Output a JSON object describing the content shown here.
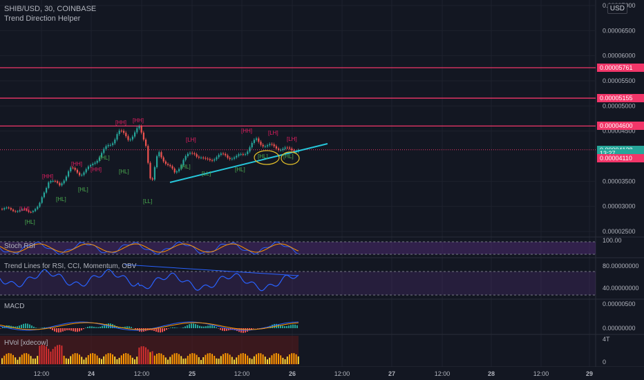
{
  "header": {
    "symbol_line": "SHIB/USD, 30, COINBASE",
    "indicator_line": "Trend Direction Helper",
    "currency_badge": "USD"
  },
  "colors": {
    "background": "#131722",
    "grid": "#1e222d",
    "level_line": "#f23669",
    "current_price_line": "#f23669",
    "trendline": "#26c6da",
    "bull_candle": "#26a69a",
    "bear_candle": "#ef5350",
    "rsi_band": "#4a2a6e",
    "rsi_line": "#2962ff",
    "stoch_k": "#2962ff",
    "stoch_d": "#ff9800",
    "hl_label": "#4caf50",
    "hh_label": "#e91e63"
  },
  "price_axis": {
    "ticks": [
      "0.00007000",
      "0.00006500",
      "0.00006000",
      "0.00005500",
      "0.00005000",
      "0.00004500",
      "0.00003500",
      "0.00003000",
      "0.00002500"
    ],
    "tags": [
      {
        "label": "0.00005761",
        "value": 5.761e-05,
        "color": "#f23669"
      },
      {
        "label": "0.00005155",
        "value": 5.155e-05,
        "color": "#f23669"
      },
      {
        "label": "0.00004600",
        "value": 4.6e-05,
        "color": "#f23669"
      },
      {
        "label": "0.00004128",
        "value": 4.128e-05,
        "color": "#26a69a"
      },
      {
        "label": "13:27",
        "value": 4.06e-05,
        "color": "#26a69a"
      },
      {
        "label": "0.00004110",
        "value": 3.96e-05,
        "color": "#f23669"
      }
    ]
  },
  "time_axis": {
    "labels": [
      "12:00",
      "24",
      "12:00",
      "25",
      "12:00",
      "26",
      "12:00",
      "27",
      "12:00",
      "28",
      "12:00",
      "29"
    ]
  },
  "levels": [
    5.761e-05,
    5.155e-05,
    4.6e-05
  ],
  "current_price": 4.128e-05,
  "panes": {
    "stoch_rsi": {
      "label": "Stoch RSI",
      "tick": "100.00"
    },
    "trend_lines": {
      "label": "Trend Lines for RSI, CCI, Momentum, OBV",
      "ticks": [
        "80.00000000",
        "40.00000000"
      ]
    },
    "macd": {
      "label": "MACD",
      "ticks": [
        "0.00000500",
        "0.00000000"
      ]
    },
    "hvol": {
      "label": "HVol [xdecow]",
      "ticks": [
        "4T",
        "0"
      ]
    }
  },
  "swing_labels": [
    {
      "text": "[LH]",
      "type": "hh"
    },
    {
      "text": "[HL]",
      "type": "hl"
    },
    {
      "text": "[HH]",
      "type": "hh"
    },
    {
      "text": "[HL]",
      "type": "hl"
    },
    {
      "text": "[HH]",
      "type": "hh"
    },
    {
      "text": "[HL]",
      "type": "hl"
    },
    {
      "text": "[HH]",
      "type": "hh"
    },
    {
      "text": "[HL]",
      "type": "hl"
    },
    {
      "text": "[HH]",
      "type": "hh"
    },
    {
      "text": "[HL]",
      "type": "hl"
    },
    {
      "text": "[LL]",
      "type": "hl"
    },
    {
      "text": "[HH]",
      "type": "hh"
    },
    {
      "text": "[HL]",
      "type": "hl"
    },
    {
      "text": "[LL]",
      "type": "hl"
    },
    {
      "text": "[LH]",
      "type": "hh"
    },
    {
      "text": "[HL]",
      "type": "hl"
    },
    {
      "text": "[HH]",
      "type": "hh"
    },
    {
      "text": "[HL]",
      "type": "hl"
    },
    {
      "text": "[LH]",
      "type": "hh"
    },
    {
      "text": "[HL]",
      "type": "hl"
    },
    {
      "text": "[LH]",
      "type": "hh"
    }
  ]
}
